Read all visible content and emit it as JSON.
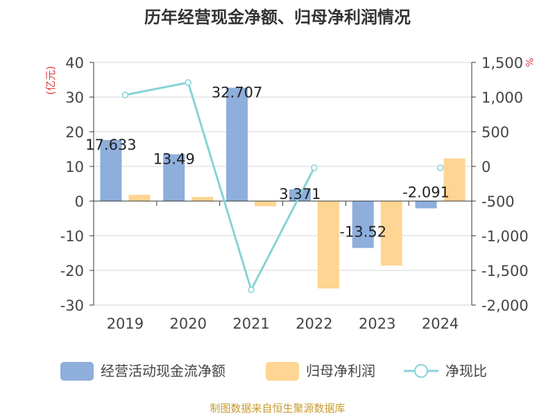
{
  "chart_data": {
    "type": "bar",
    "title": "历年经营现金净额、归母净利润情况",
    "ylabel_left": "(亿元)",
    "ylabel_right": "%",
    "categories": [
      "2019",
      "2020",
      "2021",
      "2022",
      "2023",
      "2024"
    ],
    "ylim_left": [
      -30,
      40
    ],
    "ylim_right": [
      -2000,
      1500
    ],
    "left_ticks": [
      "40",
      "30",
      "20",
      "10",
      "0",
      "-10",
      "-20",
      "-30"
    ],
    "left_tick_values": [
      40,
      30,
      20,
      10,
      0,
      -10,
      -20,
      -30
    ],
    "right_ticks": [
      "1,500",
      "1,000",
      "500",
      "0",
      "-500",
      "-1,000",
      "-1,500",
      "-2,000"
    ],
    "right_tick_values": [
      1500,
      1000,
      500,
      0,
      -500,
      -1000,
      -1500,
      -2000
    ],
    "series": [
      {
        "name": "经营活动现金流净额",
        "kind": "bar",
        "axis": "left",
        "color": "#8eaedc",
        "values": [
          17.633,
          13.49,
          32.707,
          3.371,
          -13.52,
          -2.091
        ],
        "labels": [
          "17.633",
          "13.49",
          "32.707",
          "3.371",
          "-13.52",
          "-2.091"
        ]
      },
      {
        "name": "归母净利润",
        "kind": "bar",
        "axis": "left",
        "color": "#fed592",
        "values": [
          1.8,
          1.2,
          -1.5,
          -25.2,
          -18.6,
          12.3
        ]
      },
      {
        "name": "净现比",
        "kind": "line",
        "axis": "right",
        "color": "#86d3d8",
        "values": [
          1030,
          1210,
          -1780,
          -20,
          null,
          -20
        ]
      }
    ]
  },
  "footer": "制图数据来自恒生聚源数据库",
  "colors": {
    "title": "#333333",
    "axis_text": "#444444",
    "unit_label": "#e03a3a",
    "footer": "#c89a2e",
    "grid": "#d5d5d5"
  }
}
